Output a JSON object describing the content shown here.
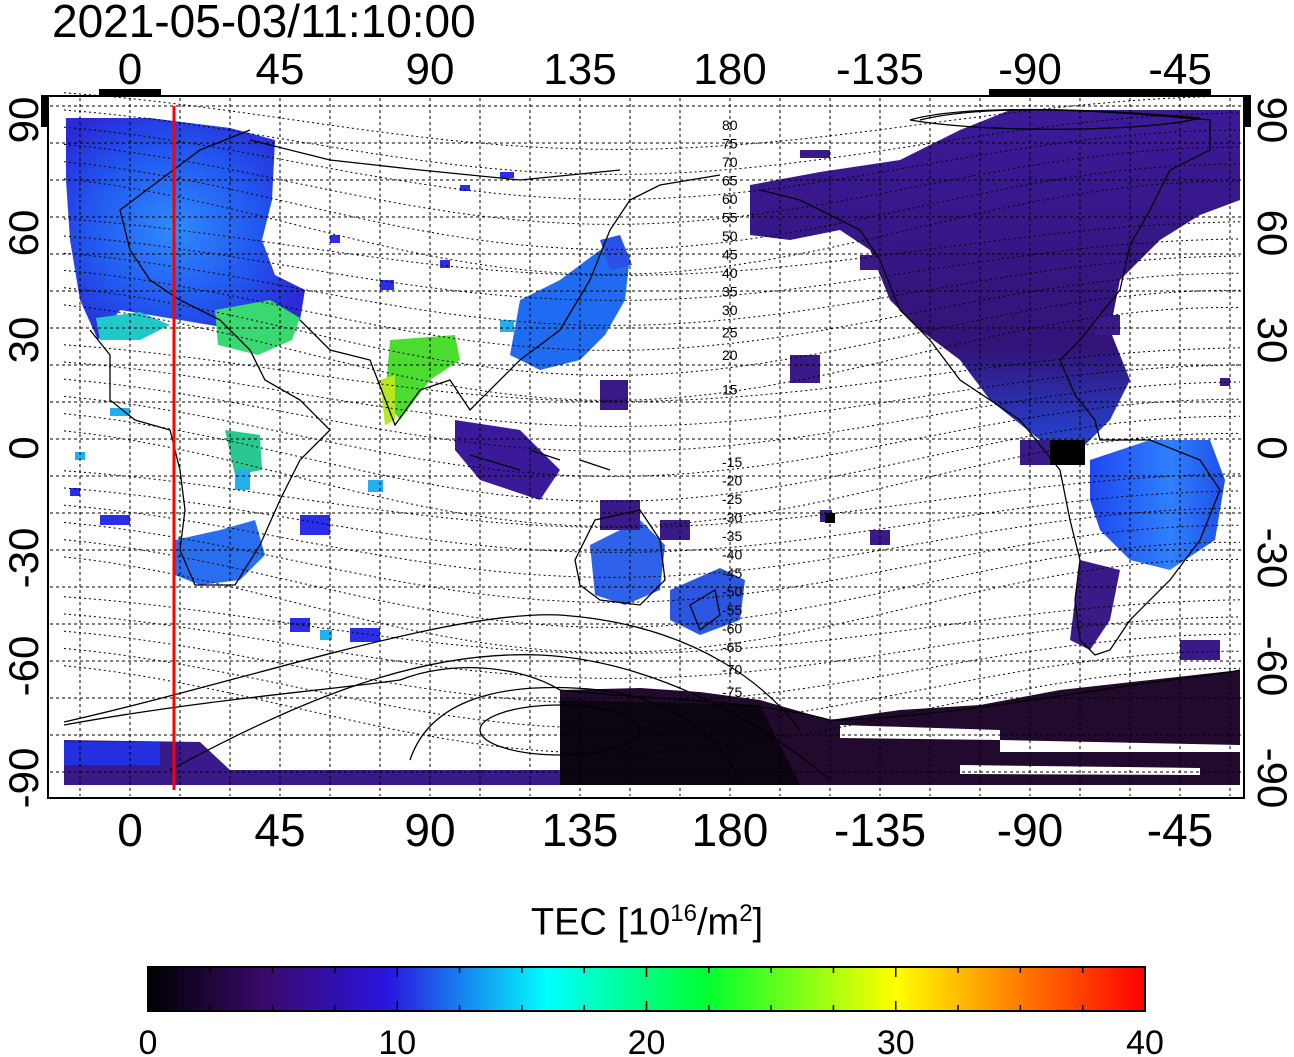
{
  "timestamp": "2021-05-03/11:10:00",
  "map": {
    "top_lon_labels": [
      "0",
      "45",
      "90",
      "135",
      "180",
      "-135",
      "-90",
      "-45"
    ],
    "bottom_lon_labels": [
      "0",
      "45",
      "90",
      "135",
      "180",
      "-135",
      "-90",
      "-45"
    ],
    "left_lat_labels": [
      "90",
      "60",
      "30",
      "0",
      "-30",
      "-60",
      "-90"
    ],
    "right_lat_labels": [
      "90",
      "60",
      "30",
      "0",
      "-30",
      "-60",
      "-90"
    ],
    "maglat_labels_north": [
      "80",
      "75",
      "70",
      "65",
      "60",
      "55",
      "50",
      "45",
      "40",
      "35",
      "30",
      "25",
      "20",
      "15"
    ],
    "maglat_labels_south": [
      "-15",
      "-20",
      "-25",
      "-30",
      "-35",
      "-40",
      "-45",
      "-50",
      "-55",
      "-60",
      "-65",
      "-70",
      "-75"
    ],
    "terminator_color": "#ff0000"
  },
  "colorbar": {
    "title_main": "TEC  [10",
    "title_exp1": "16",
    "title_mid": "/m",
    "title_exp2": "2",
    "title_end": "]",
    "tick_labels": [
      "0",
      "10",
      "20",
      "30",
      "40"
    ],
    "colors": [
      "#000000",
      "#3a0a6e",
      "#2020ff",
      "#00ffff",
      "#00ff00",
      "#ffff00",
      "#ff8000",
      "#ff0000"
    ]
  }
}
